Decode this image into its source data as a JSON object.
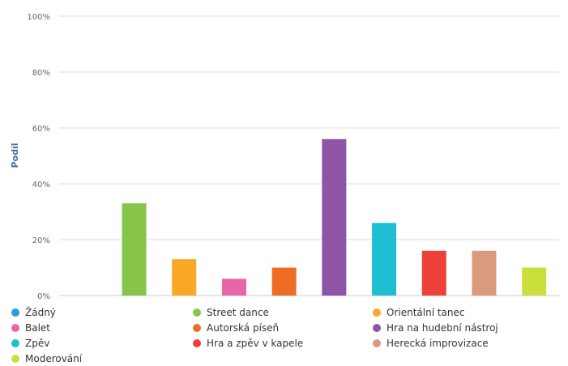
{
  "chart_data": {
    "type": "bar",
    "title": "",
    "xlabel": "",
    "ylabel": "Podíl",
    "ylim": [
      0,
      100
    ],
    "yticks": [
      "0%",
      "20%",
      "40%",
      "60%",
      "80%",
      "100%"
    ],
    "grid": true,
    "legend_position": "bottom",
    "categories": [
      "Žádný",
      "Street dance",
      "Orientální tanec",
      "Balet",
      "Autorská píseň",
      "Hra na hudební nástroj",
      "Zpěv",
      "Hra a zpěv v kapele",
      "Herecká improvizace",
      "Moderování"
    ],
    "values": [
      0,
      33,
      13,
      6,
      10,
      56,
      26,
      16,
      16,
      10
    ],
    "colors": [
      "#2b9ad8",
      "#86c54a",
      "#f9a825",
      "#e765a8",
      "#ef6c25",
      "#8e54a6",
      "#1fbfd3",
      "#ee403a",
      "#d99a7e",
      "#cbdf3c"
    ]
  }
}
